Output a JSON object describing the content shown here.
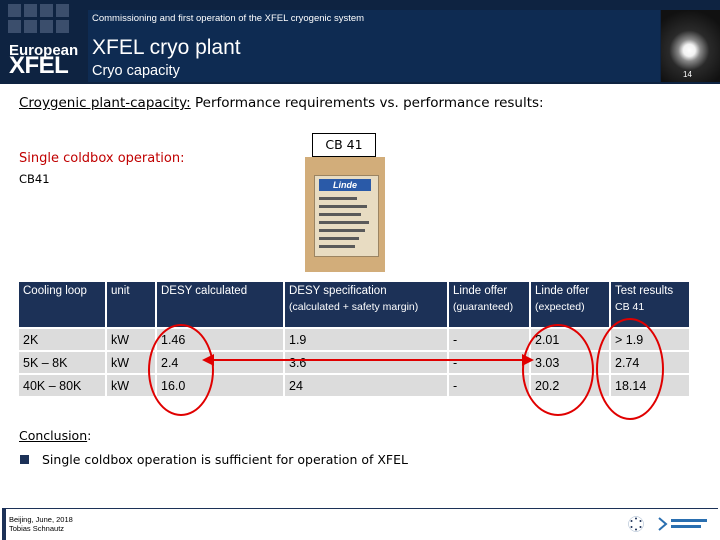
{
  "header": {
    "logo_line1": "European",
    "logo_line2": "XFEL",
    "top_text": "Commissioning and first operation of the XFEL cryogenic system",
    "title": "XFEL cryo plant",
    "subtitle": "Cryo capacity",
    "page_number": "14"
  },
  "slide": {
    "title_underlined": "Croygenic plant-capacity:",
    "title_rest": " Performance requirements vs. performance results:",
    "single_op_label": "Single coldbox operation:",
    "cb41_label": "CB41",
    "cb41_box": "CB 41",
    "photo": {
      "brand": "Linde"
    }
  },
  "table": {
    "headers": [
      {
        "main": "Cooling loop",
        "sub": ""
      },
      {
        "main": "unit",
        "sub": ""
      },
      {
        "main": "DESY calculated",
        "sub": ""
      },
      {
        "main": "DESY specification",
        "sub": "(calculated + safety margin)"
      },
      {
        "main": "Linde offer",
        "sub": "(guaranteed)"
      },
      {
        "main": "Linde offer",
        "sub": "(expected)"
      },
      {
        "main": "Test results",
        "sub": "CB 41"
      }
    ],
    "rows": [
      [
        "2K",
        "kW",
        "1.46",
        "1.9",
        "-",
        "2.01",
        "> 1.9"
      ],
      [
        "5K – 8K",
        "kW",
        "2.4",
        "3.6",
        "-",
        "3.03",
        "2.74"
      ],
      [
        "40K – 80K",
        "kW",
        "16.0",
        "24",
        "-",
        "20.2",
        "18.14"
      ]
    ]
  },
  "conclusion": {
    "label": "Conclusion",
    "colon": ":",
    "bullet": "Single coldbox operation is sufficient for operation of XFEL"
  },
  "footer": {
    "line1": "Beijing, June, 2018",
    "line2": "Tobias Schnautz"
  },
  "colors": {
    "header_bg": "#0e2341",
    "table_header_bg": "#1c3157",
    "cell_bg": "#dcdcdc",
    "highlight_red": "#e00000"
  }
}
